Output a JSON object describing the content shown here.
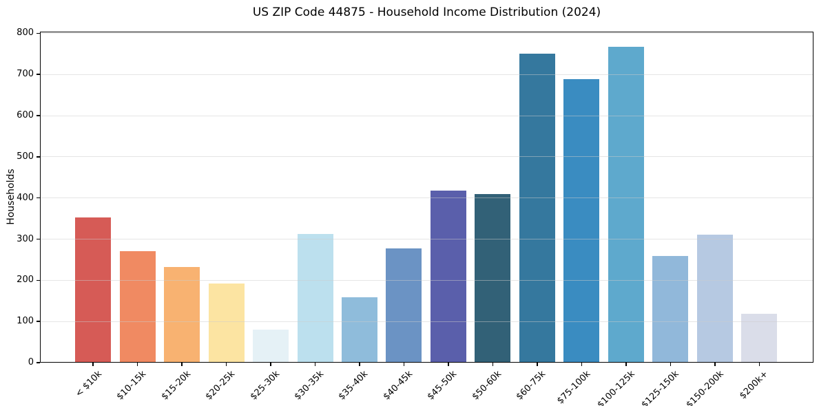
{
  "chart_data": {
    "type": "bar",
    "title": "US ZIP Code 44875 - Household Income Distribution (2024)",
    "xlabel": "",
    "ylabel": "Households",
    "categories": [
      "< $10k",
      "$10-15k",
      "$15-20k",
      "$20-25k",
      "$25-30k",
      "$30-35k",
      "$35-40k",
      "$40-45k",
      "$45-50k",
      "$50-60k",
      "$60-75k",
      "$75-100k",
      "$100-125k",
      "$125-150k",
      "$150-200k",
      "$200k+"
    ],
    "values": [
      353,
      270,
      233,
      193,
      81,
      313,
      158,
      277,
      418,
      409,
      751,
      688,
      767,
      259,
      311,
      119
    ],
    "bar_colors": [
      "#d65b56",
      "#f08a62",
      "#f8b271",
      "#fce4a2",
      "#e5f1f6",
      "#bce0ee",
      "#8fbcdb",
      "#6b93c4",
      "#5a5fab",
      "#326177",
      "#35789e",
      "#3a8cc1",
      "#5ea9cd",
      "#91b8da",
      "#b6c9e2",
      "#dadde9"
    ],
    "ylim": [
      0,
      804
    ],
    "yticks": [
      0,
      100,
      200,
      300,
      400,
      500,
      600,
      700,
      800
    ],
    "grid": "horizontal",
    "legend": "none",
    "background_color": "#ffffff",
    "spine_color": "#000000",
    "grid_color_rgba": "rgba(203,203,203,0.5)",
    "tick_color": "#000000"
  }
}
